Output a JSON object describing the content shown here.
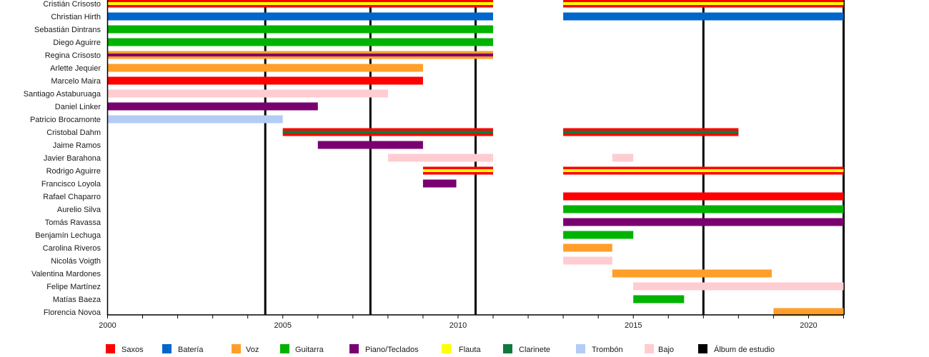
{
  "chart_data": {
    "type": "bar",
    "subtype": "timeline",
    "orientation": "horizontal",
    "title": "",
    "xlabel": "",
    "ylabel": "",
    "xlim": [
      2000,
      2021
    ],
    "x_ticks": [
      2000,
      2005,
      2010,
      2015,
      2020
    ],
    "x_minor_tick_step": 1,
    "grid": false,
    "legend_position": "bottom",
    "legend": [
      {
        "label": "Saxos",
        "color": "#ff0000"
      },
      {
        "label": "Batería",
        "color": "#0066cc"
      },
      {
        "label": "Voz",
        "color": "#ff9f2a"
      },
      {
        "label": "Guitarra",
        "color": "#00b300"
      },
      {
        "label": "Piano/Teclados",
        "color": "#7a0070"
      },
      {
        "label": "Flauta",
        "color": "#ffff00"
      },
      {
        "label": "Clarinete",
        "color": "#107a3a"
      },
      {
        "label": "Trombón",
        "color": "#b3ccf5"
      },
      {
        "label": "Bajo",
        "color": "#ffccd2"
      },
      {
        "label": "Álbum de estudio",
        "color": "#000000"
      }
    ],
    "albums": [
      2004.5,
      2007.5,
      2010.5,
      2017.0,
      2021.0
    ],
    "members": [
      {
        "name": "Cristián Crisosto",
        "periods": [
          {
            "start": 2000,
            "end": 2011,
            "instruments": [
              "Saxos",
              "Flauta"
            ]
          },
          {
            "start": 2013,
            "end": 2021,
            "instruments": [
              "Saxos",
              "Flauta"
            ]
          }
        ]
      },
      {
        "name": "Christian Hirth",
        "periods": [
          {
            "start": 2000,
            "end": 2011,
            "instruments": [
              "Batería"
            ]
          },
          {
            "start": 2013,
            "end": 2021,
            "instruments": [
              "Batería"
            ]
          }
        ]
      },
      {
        "name": "Sebastián Dintrans",
        "periods": [
          {
            "start": 2000,
            "end": 2011,
            "instruments": [
              "Guitarra"
            ]
          }
        ]
      },
      {
        "name": "Diego Aguirre",
        "periods": [
          {
            "start": 2000,
            "end": 2011,
            "instruments": [
              "Guitarra"
            ]
          }
        ]
      },
      {
        "name": "Regina Crisosto",
        "periods": [
          {
            "start": 2000,
            "end": 2011,
            "instruments": [
              "Voz",
              "Piano/Teclados"
            ]
          }
        ]
      },
      {
        "name": "Arlette Jequier",
        "periods": [
          {
            "start": 2000,
            "end": 2009,
            "instruments": [
              "Voz"
            ]
          }
        ]
      },
      {
        "name": "Marcelo Maira",
        "periods": [
          {
            "start": 2000,
            "end": 2009,
            "instruments": [
              "Saxos"
            ]
          }
        ]
      },
      {
        "name": "Santiago Astaburuaga",
        "periods": [
          {
            "start": 2000,
            "end": 2008,
            "instruments": [
              "Bajo"
            ]
          }
        ]
      },
      {
        "name": "Daniel Linker",
        "periods": [
          {
            "start": 2000,
            "end": 2006,
            "instruments": [
              "Piano/Teclados"
            ]
          }
        ]
      },
      {
        "name": "Patricio Brocamonte",
        "periods": [
          {
            "start": 2000,
            "end": 2005,
            "instruments": [
              "Trombón"
            ]
          }
        ]
      },
      {
        "name": "Cristobal Dahm",
        "periods": [
          {
            "start": 2005,
            "end": 2011,
            "instruments": [
              "Saxos",
              "Clarinete"
            ]
          },
          {
            "start": 2013,
            "end": 2018,
            "instruments": [
              "Saxos",
              "Clarinete"
            ]
          }
        ]
      },
      {
        "name": "Jaime Ramos",
        "periods": [
          {
            "start": 2006,
            "end": 2009,
            "instruments": [
              "Piano/Teclados"
            ]
          }
        ]
      },
      {
        "name": "Javier Barahona",
        "periods": [
          {
            "start": 2008,
            "end": 2011,
            "instruments": [
              "Bajo"
            ]
          },
          {
            "start": 2014.4,
            "end": 2015,
            "instruments": [
              "Bajo"
            ]
          }
        ]
      },
      {
        "name": "Rodrigo Aguirre",
        "periods": [
          {
            "start": 2009,
            "end": 2011,
            "instruments": [
              "Saxos",
              "Flauta"
            ]
          },
          {
            "start": 2013,
            "end": 2021,
            "instruments": [
              "Saxos",
              "Flauta"
            ]
          }
        ]
      },
      {
        "name": "Francisco Loyola",
        "periods": [
          {
            "start": 2009,
            "end": 2009.95,
            "instruments": [
              "Piano/Teclados"
            ]
          }
        ]
      },
      {
        "name": "Rafael Chaparro",
        "periods": [
          {
            "start": 2013,
            "end": 2021,
            "instruments": [
              "Saxos"
            ]
          }
        ]
      },
      {
        "name": "Aurelio Silva",
        "periods": [
          {
            "start": 2013,
            "end": 2021,
            "instruments": [
              "Guitarra"
            ]
          }
        ]
      },
      {
        "name": "Tomás Ravassa",
        "periods": [
          {
            "start": 2013,
            "end": 2021,
            "instruments": [
              "Piano/Teclados"
            ]
          }
        ]
      },
      {
        "name": "Benjamín Lechuga",
        "periods": [
          {
            "start": 2013,
            "end": 2015,
            "instruments": [
              "Guitarra"
            ]
          }
        ]
      },
      {
        "name": "Carolina Riveros",
        "periods": [
          {
            "start": 2013,
            "end": 2014.4,
            "instruments": [
              "Voz"
            ]
          }
        ]
      },
      {
        "name": "Nicolás Voigth",
        "periods": [
          {
            "start": 2013,
            "end": 2014.4,
            "instruments": [
              "Bajo"
            ]
          }
        ]
      },
      {
        "name": "Valentina Mardones",
        "periods": [
          {
            "start": 2014.4,
            "end": 2018.95,
            "instruments": [
              "Voz"
            ]
          }
        ]
      },
      {
        "name": "Felipe Martínez",
        "periods": [
          {
            "start": 2015,
            "end": 2021,
            "instruments": [
              "Bajo"
            ]
          }
        ]
      },
      {
        "name": "Matías Baeza",
        "periods": [
          {
            "start": 2015,
            "end": 2016.45,
            "instruments": [
              "Guitarra"
            ]
          }
        ]
      },
      {
        "name": "Florencia Novoa",
        "periods": [
          {
            "start": 2019,
            "end": 2021,
            "instruments": [
              "Voz"
            ]
          }
        ]
      }
    ]
  }
}
